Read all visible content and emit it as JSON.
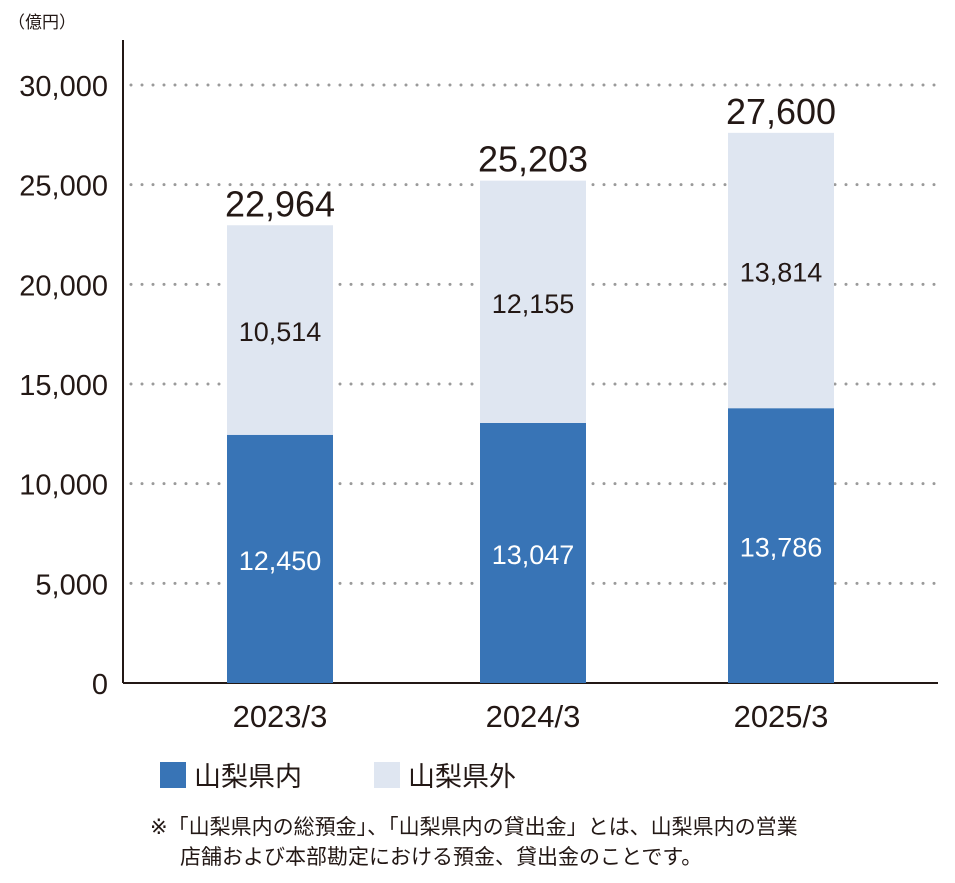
{
  "chart_data": {
    "type": "bar",
    "stacked": true,
    "unit_label": "（億円）",
    "categories": [
      "2023/3",
      "2024/3",
      "2025/3"
    ],
    "series": [
      {
        "name": "山梨県内",
        "color": "#3874b6",
        "values": [
          12450,
          13047,
          13786
        ],
        "labels": [
          "12,450",
          "13,047",
          "13,786"
        ]
      },
      {
        "name": "山梨県外",
        "color": "#dfe6f1",
        "values": [
          10514,
          12155,
          13814
        ],
        "labels": [
          "10,514",
          "12,155",
          "13,814"
        ]
      }
    ],
    "totals": [
      22964,
      25203,
      27600
    ],
    "total_labels": [
      "22,964",
      "25,203",
      "27,600"
    ],
    "ylim": [
      0,
      30000
    ],
    "yticks": [
      0,
      5000,
      10000,
      15000,
      20000,
      25000,
      30000
    ],
    "ytick_labels": [
      "0",
      "5,000",
      "10,000",
      "15,000",
      "20,000",
      "25,000",
      "30,000"
    ],
    "grid": "dotted horizontal",
    "legend_position": "bottom-left"
  },
  "note": {
    "line1": "※「山梨県内の総預金」、「山梨県内の貸出金」とは、山梨県内の営業",
    "line2": "店舗および本部勘定における預金、貸出金のことです。"
  }
}
